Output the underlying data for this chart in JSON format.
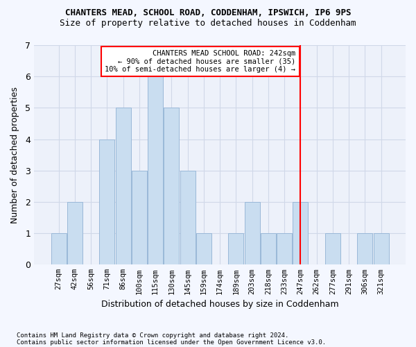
{
  "title_line1": "CHANTERS MEAD, SCHOOL ROAD, CODDENHAM, IPSWICH, IP6 9PS",
  "title_line2": "Size of property relative to detached houses in Coddenham",
  "xlabel": "Distribution of detached houses by size in Coddenham",
  "ylabel": "Number of detached properties",
  "categories": [
    "27sqm",
    "42sqm",
    "56sqm",
    "71sqm",
    "86sqm",
    "100sqm",
    "115sqm",
    "130sqm",
    "145sqm",
    "159sqm",
    "174sqm",
    "189sqm",
    "203sqm",
    "218sqm",
    "233sqm",
    "247sqm",
    "262sqm",
    "277sqm",
    "291sqm",
    "306sqm",
    "321sqm"
  ],
  "values": [
    1,
    2,
    0,
    4,
    5,
    3,
    6,
    5,
    3,
    1,
    0,
    1,
    2,
    1,
    1,
    2,
    0,
    1,
    0,
    1,
    1
  ],
  "bar_color": "#c9ddf0",
  "bar_edge_color": "#9ab8d8",
  "grid_color": "#d0d8e8",
  "ylim": [
    0,
    7
  ],
  "yticks": [
    0,
    1,
    2,
    3,
    4,
    5,
    6,
    7
  ],
  "red_line_x": 15.0,
  "annotation_text": "CHANTERS MEAD SCHOOL ROAD: 242sqm\n← 90% of detached houses are smaller (35)\n10% of semi-detached houses are larger (4) →",
  "footnote1": "Contains HM Land Registry data © Crown copyright and database right 2024.",
  "footnote2": "Contains public sector information licensed under the Open Government Licence v3.0.",
  "background_color": "#f4f7ff",
  "plot_background": "#edf1fa"
}
